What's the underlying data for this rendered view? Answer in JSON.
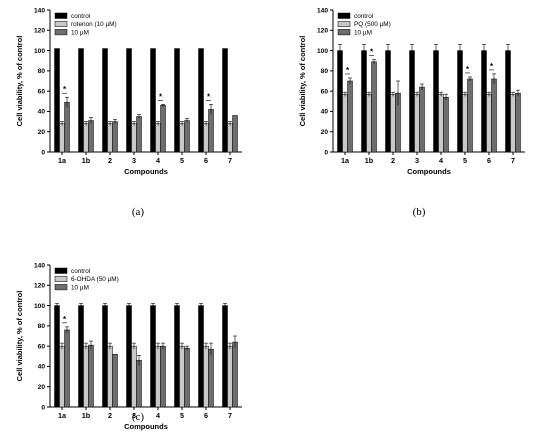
{
  "colors": {
    "control": "#000000",
    "treatment": "#c8c8c8",
    "compound": "#6e6e6e",
    "axis": "#000000"
  },
  "chart_data": [
    {
      "type": "bar",
      "panel_label": "(a)",
      "xlabel": "Compounds",
      "ylabel": "Cell viability, % of control",
      "ylim": [
        0,
        140
      ],
      "yticks": [
        "0",
        "20",
        "40",
        "60",
        "80",
        "100",
        "120",
        "140"
      ],
      "categories": [
        "1a",
        "1b",
        "2",
        "3",
        "4",
        "5",
        "6",
        "7"
      ],
      "legend_position": "top-left",
      "series": [
        {
          "name": "control",
          "color_key": "control",
          "values": [
            102,
            102,
            102,
            102,
            102,
            102,
            102,
            102
          ],
          "errors": [
            0,
            0,
            0,
            0,
            0,
            0,
            0,
            0
          ]
        },
        {
          "name": "rotenon (10 µM)",
          "color_key": "treatment",
          "values": [
            28,
            28,
            28,
            28,
            28,
            28,
            28,
            28
          ],
          "errors": [
            2,
            2,
            2,
            2,
            2,
            2,
            2,
            2
          ]
        },
        {
          "name": "10 µM",
          "color_key": "compound",
          "values": [
            49,
            31,
            30,
            35,
            46,
            31,
            42,
            36
          ],
          "errors": [
            5,
            3,
            2,
            2,
            1,
            2,
            5,
            0
          ]
        }
      ],
      "significance": [
        "*",
        "",
        "",
        "",
        "*",
        "",
        "*",
        ""
      ]
    },
    {
      "type": "bar",
      "panel_label": "(b)",
      "xlabel": "Compounds",
      "ylabel": "Cell viability, % of control",
      "ylim": [
        0,
        140
      ],
      "yticks": [
        "0",
        "20",
        "40",
        "60",
        "80",
        "100",
        "120",
        "140"
      ],
      "categories": [
        "1a",
        "1b",
        "2",
        "3",
        "4",
        "5",
        "6",
        "7"
      ],
      "legend_position": "top-left",
      "series": [
        {
          "name": "control",
          "color_key": "control",
          "values": [
            100,
            100,
            100,
            100,
            100,
            100,
            100,
            100
          ],
          "errors": [
            6,
            6,
            6,
            6,
            6,
            6,
            6,
            6
          ]
        },
        {
          "name": "PQ (500 µM)",
          "color_key": "treatment",
          "values": [
            57,
            57,
            57,
            57,
            57,
            57,
            57,
            57
          ],
          "errors": [
            2,
            2,
            2,
            2,
            2,
            2,
            2,
            2
          ]
        },
        {
          "name": "10 µM",
          "color_key": "compound",
          "values": [
            70,
            89,
            58,
            64,
            54,
            72,
            72,
            58
          ],
          "errors": [
            3,
            2,
            12,
            3,
            3,
            2,
            5,
            3
          ]
        }
      ],
      "significance": [
        "*",
        "*",
        "",
        "",
        "",
        "*",
        "*",
        ""
      ]
    },
    {
      "type": "bar",
      "panel_label": "(c)",
      "xlabel": "Compounds",
      "ylabel": "Cell viability, % of control",
      "ylim": [
        0,
        140
      ],
      "yticks": [
        "0",
        "20",
        "40",
        "60",
        "80",
        "100",
        "120",
        "140"
      ],
      "categories": [
        "1a",
        "1b",
        "2",
        "3",
        "4",
        "5",
        "6",
        "7"
      ],
      "legend_position": "top-left",
      "series": [
        {
          "name": "control",
          "color_key": "control",
          "values": [
            100,
            100,
            100,
            100,
            100,
            100,
            100,
            100
          ],
          "errors": [
            2,
            2,
            2,
            2,
            2,
            2,
            2,
            2
          ]
        },
        {
          "name": "6-OHDA (50 µM)",
          "color_key": "treatment",
          "values": [
            60,
            60,
            60,
            60,
            60,
            60,
            60,
            60
          ],
          "errors": [
            3,
            3,
            3,
            3,
            3,
            3,
            3,
            3
          ]
        },
        {
          "name": "10 µM",
          "color_key": "compound",
          "values": [
            76,
            61,
            52,
            46,
            60,
            58,
            57,
            64
          ],
          "errors": [
            3,
            4,
            0,
            5,
            3,
            2,
            6,
            6
          ]
        }
      ],
      "significance": [
        "*",
        "",
        "",
        "",
        "",
        "",
        "",
        ""
      ]
    }
  ]
}
